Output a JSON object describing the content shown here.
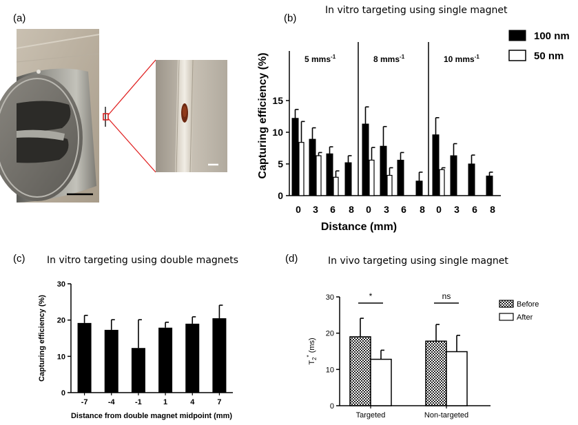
{
  "panels": {
    "a": {
      "label": "(a)"
    },
    "b": {
      "label": "(b)"
    },
    "c": {
      "label": "(c)"
    },
    "d": {
      "label": "(d)"
    }
  },
  "photo": {
    "scale_bar_color": "#000000",
    "zoom_line_color": "#e02020",
    "marker_color": "#d42020"
  },
  "chart_data": [
    {
      "id": "b",
      "type": "bar",
      "title": "In vitro targeting using single magnet",
      "xlabel": "Distance (mm)",
      "ylabel": "Capturing efficiency (%)",
      "ylim": [
        0,
        15
      ],
      "yticks": [
        0,
        5,
        10,
        15
      ],
      "groups": [
        {
          "label": "5 mms-1",
          "label_main": "5 mms",
          "label_sup": "-1"
        },
        {
          "label": "8 mms-1",
          "label_main": "8 mms",
          "label_sup": "-1"
        },
        {
          "label": "10 mms-1",
          "label_main": "10 mms",
          "label_sup": "-1"
        }
      ],
      "categories": [
        "0",
        "3",
        "6",
        "8"
      ],
      "series": [
        {
          "name": "100 nm",
          "color": "#000000",
          "values": [
            [
              12.2,
              8.9,
              6.6,
              5.2
            ],
            [
              11.3,
              7.8,
              5.6,
              2.3
            ],
            [
              9.6,
              6.3,
              5.0,
              3.1
            ]
          ],
          "errors": [
            [
              1.4,
              1.8,
              1.1,
              1.1
            ],
            [
              2.7,
              3.1,
              1.2,
              1.4
            ],
            [
              2.7,
              1.9,
              1.4,
              0.6
            ]
          ]
        },
        {
          "name": "50 nm",
          "color": "#ffffff",
          "values": [
            [
              8.4,
              6.3,
              2.9,
              null
            ],
            [
              5.6,
              3.2,
              null,
              null
            ],
            [
              4.1,
              null,
              null,
              null
            ]
          ],
          "errors": [
            [
              3.3,
              0.5,
              1.0,
              null
            ],
            [
              2.0,
              1.2,
              null,
              null
            ],
            [
              0.3,
              null,
              null,
              null
            ]
          ]
        }
      ],
      "legend_position": "top-right"
    },
    {
      "id": "c",
      "type": "bar",
      "title": "In vitro targeting using double magnets",
      "xlabel": "Distance from double magnet midpoint (mm)",
      "ylabel": "Capturing efficiency (%)",
      "ylim": [
        0,
        30
      ],
      "yticks": [
        0,
        10,
        20,
        30
      ],
      "categories": [
        "-7",
        "-4",
        "-1",
        "1",
        "4",
        "7"
      ],
      "values": [
        19.2,
        17.3,
        12.3,
        17.9,
        19.0,
        20.5
      ],
      "errors": [
        2.1,
        2.8,
        7.8,
        1.5,
        1.9,
        3.6
      ],
      "color": "#000000"
    },
    {
      "id": "d",
      "type": "bar",
      "title": "In vivo targeting using single magnet",
      "xlabel": "",
      "ylabel": "T2* (ms)",
      "ylabel_main": "T",
      "ylabel_sub": "2",
      "ylabel_sup": "*",
      "ylabel_unit": " (ms)",
      "ylim": [
        0,
        30
      ],
      "yticks": [
        0,
        10,
        20,
        30
      ],
      "categories": [
        "Targeted",
        "Non-targeted"
      ],
      "series": [
        {
          "name": "Before",
          "pattern": "checkered",
          "values": [
            19.0,
            17.8
          ],
          "errors": [
            5.1,
            4.6
          ]
        },
        {
          "name": "After",
          "pattern": "white",
          "values": [
            12.8,
            14.9
          ],
          "errors": [
            2.5,
            4.5
          ]
        }
      ],
      "significance": [
        "*",
        "ns"
      ],
      "legend_position": "top-right"
    }
  ]
}
